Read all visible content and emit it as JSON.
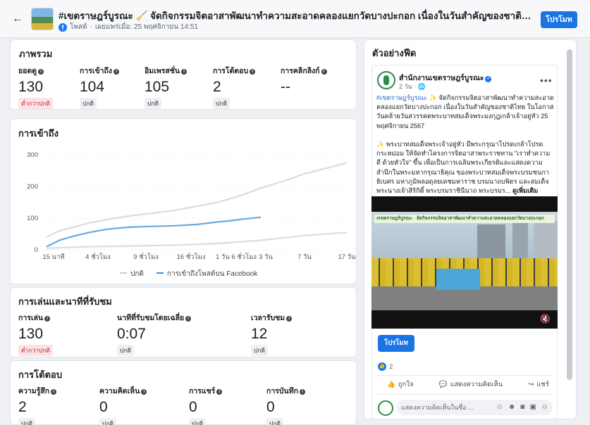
{
  "header": {
    "back_icon": "arrow-left-icon",
    "title": "#เขตราษฎร์บูรณะ 🧹 จัดกิจกรรมจิตอาสาพัฒนาทำความสะอาดคลองแยกวัดบางปะกอก เนื่องในวันสำคัญของชาติไทย ในโอกาสวันคล้ายวันสวรรคตพระบาทสมเด็จพระมงกุฎเกล้าเจ้าอยู่หัว",
    "post_type": "โพสต์",
    "published": "เผยแพร่เมื่อ: 25 พฤศจิกายน 14:51",
    "promote_label": "โปรโมท"
  },
  "overview": {
    "title": "ภาพรวม",
    "metrics": [
      {
        "label": "ยอดดู",
        "value": "130",
        "badge": "ต่ำกว่าปกติ",
        "status": "low"
      },
      {
        "label": "การเข้าถึง",
        "value": "104",
        "badge": "ปกติ",
        "status": "normal"
      },
      {
        "label": "อิมเพรสชั่น",
        "value": "105",
        "badge": "ปกติ",
        "status": "normal"
      },
      {
        "label": "การโต้ตอบ",
        "value": "2",
        "badge": "ปกติ",
        "status": "normal"
      },
      {
        "label": "การคลิกลิงก์",
        "value": "--",
        "badge": "",
        "status": "none"
      }
    ]
  },
  "reach": {
    "title": "การเข้าถึง"
  },
  "chart_data": {
    "type": "line",
    "title": "การเข้าถึง",
    "x_ticks": [
      "15 นาที",
      "4 ชั่วโมง",
      "9 ชั่วโมง",
      "16 ชั่วโมง",
      "1 วัน 6 ชั่วโมง",
      "3 วัน",
      "7 วัน",
      "17 วัน"
    ],
    "y_ticks": [
      0,
      100,
      200,
      300
    ],
    "ylim": [
      0,
      300
    ],
    "grid": true,
    "legend_position": "bottom",
    "band": {
      "name": "ปกติ",
      "color": "#dcdcdc",
      "upper": {
        "x": [
          0,
          0.3,
          1,
          1.6,
          2,
          2.6,
          3,
          3.6,
          4,
          4.6,
          5,
          5.6,
          6,
          6.6,
          7
        ],
        "y": [
          40,
          60,
          85,
          100,
          108,
          118,
          125,
          140,
          150,
          175,
          195,
          220,
          240,
          260,
          275
        ]
      },
      "lower": {
        "x": [
          0,
          1,
          2,
          3,
          4,
          5,
          6,
          7
        ],
        "y": [
          5,
          10,
          12,
          15,
          20,
          30,
          45,
          55
        ]
      }
    },
    "series": [
      {
        "name": "การเข้าถึงโพสต์บน Facebook",
        "color": "#6aa9dc",
        "x": [
          0,
          0.3,
          0.6,
          1,
          1.4,
          1.8,
          2,
          2.5,
          3,
          3.5,
          4,
          4.3,
          4.6,
          5
        ],
        "y": [
          10,
          30,
          42,
          55,
          65,
          70,
          72,
          74,
          76,
          80,
          88,
          92,
          97,
          103
        ]
      }
    ]
  },
  "playback": {
    "title": "การเล่นและนาทีที่รับชม",
    "metrics": [
      {
        "label": "การเล่น",
        "value": "130",
        "badge": "ต่ำกว่าปกติ",
        "status": "low"
      },
      {
        "label": "นาทีที่รับชมโดยเฉลี่ย",
        "value": "0:07",
        "badge": "ปกติ",
        "status": "normal"
      },
      {
        "label": "เวลารับชม",
        "value": "12",
        "badge": "ปกติ",
        "status": "normal"
      }
    ]
  },
  "engagement": {
    "title": "การโต้ตอบ",
    "metrics": [
      {
        "label": "ความรู้สึก",
        "value": "2",
        "badge": "ปกติ",
        "status": "normal"
      },
      {
        "label": "ความคิดเห็น",
        "value": "0",
        "badge": "ปกติ",
        "status": "normal"
      },
      {
        "label": "การแชร์",
        "value": "0",
        "badge": "ปกติ",
        "status": "normal"
      },
      {
        "label": "การบันทึก",
        "value": "0",
        "badge": "ปกติ",
        "status": "normal"
      }
    ]
  },
  "preview": {
    "title": "ตัวอย่างฟีด",
    "page_name": "สำนักงานเขตราษฎร์บูรณะ",
    "time": "2 วัน · 🌐",
    "text_tag": "#เขตราษฎร์บูรณะ",
    "text_1": " ✨ จัดกิจกรรมจิตอาสาพัฒนาทำความสะอาดคลองแยกวัดบางปะกอก เนื่องในวันสำคัญของชาติไทย ในโอกาสวันคล้ายวันสวรรคตพระบาทสมเด็จพระมงกุฎเกล้าเจ้าอยู่หัว 25 พฤศจิกายน 2567",
    "text_2": "✨ พระบาทสมเด็จพระเจ้าอยู่หัว มีพระกรุณาโปรดเกล้าโปรดกระหม่อม ให้จัดทำโครงการจิตอาสาพระราชทาน \"เราทำความดี ด้วยหัวใจ\" ขึ้น เพื่อเป็นการเฉลิมพระเกียรติและแสดงความสำนึกในพระมหากรุณาธิคุณ ของพระบาทสมเด็จพระบรมชนกาธิเบศร มหาภูมิพลอดุลยเดชมหาราช บรมนาถบพิตร และสมเด็จพระนางเจ้าสิริกิติ์ พระบรมราชินีนาถ พระบรมร...",
    "see_more": "ดูเพิ่มเติม",
    "video_caption": "#เขตราษฎร์บูรณะ · จัดกิจกรรมจิตอาสาพัฒนาทำความสะอาดคลองแยกวัดบางปะกอก",
    "promote_label": "โปรโมท",
    "like_count": "2",
    "like_label": "ถูกใจ",
    "comment_label": "แสดงความคิดเห็น",
    "share_label": "แชร์",
    "comment_placeholder": "แสดงความคิดเห็นในชื่อ ..."
  }
}
